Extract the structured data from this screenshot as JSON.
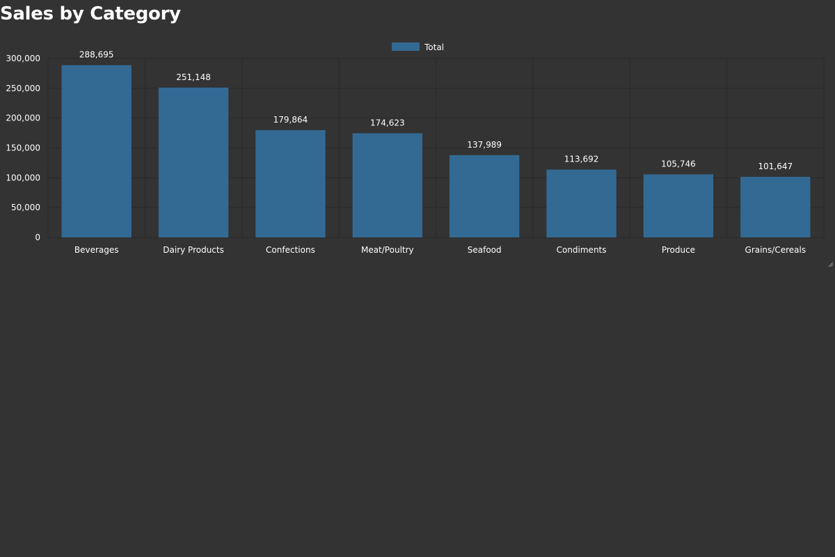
{
  "page": {
    "title": "Sales by Category"
  },
  "chart_data": {
    "type": "bar",
    "categories": [
      "Beverages",
      "Dairy Products",
      "Confections",
      "Meat/Poultry",
      "Seafood",
      "Condiments",
      "Produce",
      "Grains/Cereals"
    ],
    "series": [
      {
        "name": "Total",
        "values": [
          288695,
          251148,
          179864,
          174623,
          137989,
          113692,
          105746,
          101647
        ],
        "color": "#336a94"
      }
    ],
    "ylim": [
      0,
      300000
    ],
    "yticks": [
      0,
      50000,
      100000,
      150000,
      200000,
      250000,
      300000
    ],
    "ytick_labels": [
      "0",
      "50,000",
      "100,000",
      "150,000",
      "200,000",
      "250,000",
      "300,000"
    ],
    "value_labels": [
      "288,695",
      "251,148",
      "179,864",
      "174,623",
      "137,989",
      "113,692",
      "105,746",
      "101,647"
    ],
    "legend": "top-center",
    "grid": true,
    "colors": {
      "background": "#333333",
      "grid": "#2a2a2a",
      "text": "#ffffff",
      "bar": "#336a94"
    }
  }
}
